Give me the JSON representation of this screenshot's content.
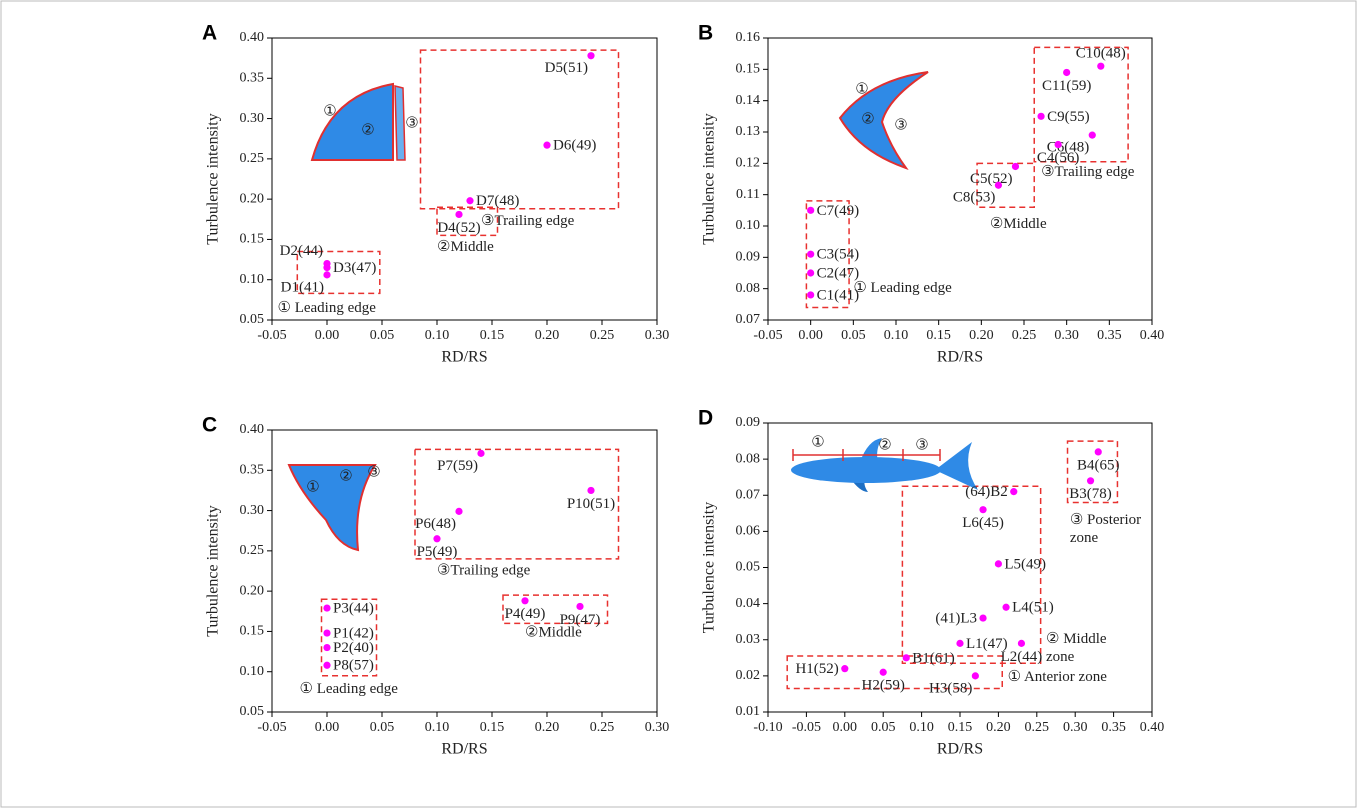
{
  "chart_data": [
    {
      "type": "scatter",
      "panel": "A",
      "xlabel": "RD/RS",
      "ylabel": "Turbulence intensity",
      "xlim": [
        -0.05,
        0.3
      ],
      "ylim": [
        0.05,
        0.4
      ],
      "xticks": [
        -0.05,
        {
          "value": 0,
          "label": "0.00"
        },
        0.05,
        {
          "value": 0.1,
          "label": "0.10"
        },
        0.15,
        {
          "value": 0.2,
          "label": "0.20"
        },
        0.25,
        {
          "value": 0.3,
          "label": "0.30"
        }
      ],
      "yticks": [
        0.05,
        {
          "value": 0.1,
          "label": "0.10"
        },
        0.15,
        {
          "value": 0.2,
          "label": "0.20"
        },
        0.25,
        {
          "value": 0.3,
          "label": "0.30"
        },
        0.35,
        {
          "value": 0.4,
          "label": "0.40"
        }
      ],
      "series": [
        {
          "color": "#ff00ff",
          "x": [
            0.24,
            0.2,
            0.13,
            0.12,
            0,
            0,
            0
          ],
          "values": [
            0.378,
            0.267,
            0.198,
            0.181,
            0.12,
            0.115,
            0.106
          ],
          "labels": [
            "D5(51)",
            "D6(49)",
            "D7(48)",
            "D4(52)",
            "D2(44)",
            "D3(47)",
            "D1(41)"
          ]
        }
      ],
      "annotations": [
        [
          "③Trailing edge"
        ],
        [
          "②Middle"
        ],
        [
          "① Leading edge"
        ]
      ],
      "diagram_labels": [
        "①",
        "②",
        "③"
      ]
    },
    {
      "type": "scatter",
      "panel": "B",
      "xlabel": "RD/RS",
      "ylabel": "Turbulence intensity",
      "xlim": [
        -0.05,
        0.4
      ],
      "ylim": [
        0.07,
        0.16
      ],
      "xticks": [
        -0.05,
        {
          "value": 0,
          "label": "0.00"
        },
        0.05,
        {
          "value": 0.1,
          "label": "0.10"
        },
        0.15,
        {
          "value": 0.2,
          "label": "0.20"
        },
        0.25,
        {
          "value": 0.3,
          "label": "0.30"
        },
        0.35,
        {
          "value": 0.4,
          "label": "0.40"
        }
      ],
      "yticks": [
        0.07,
        0.08,
        0.09,
        {
          "value": 0.1,
          "label": "0.10"
        },
        0.11,
        0.12,
        0.13,
        0.14,
        0.15,
        0.16
      ],
      "series": [
        {
          "color": "#ff00ff",
          "x": [
            0.34,
            0.3,
            0.27,
            0.33,
            0.29,
            0.24,
            0.22,
            0,
            0,
            0,
            0
          ],
          "values": [
            0.151,
            0.149,
            0.135,
            0.129,
            0.126,
            0.119,
            0.113,
            0.105,
            0.091,
            0.085,
            0.078
          ],
          "labels": [
            "C10(48)",
            "C11(59)",
            "C9(55)",
            "C6(48)",
            "C4(56)",
            "C5(52)",
            "C8(53)",
            "C7(49)",
            "C3(54)",
            "C2(47)",
            "C1(41)"
          ]
        }
      ],
      "annotations": [
        [
          "③Trailing edge"
        ],
        [
          "②Middle"
        ],
        [
          "① Leading edge"
        ]
      ],
      "diagram_labels": [
        "①",
        "②",
        "③"
      ]
    },
    {
      "type": "scatter",
      "panel": "C",
      "xlabel": "RD/RS",
      "ylabel": "Turbulence intensity",
      "xlim": [
        -0.05,
        0.3
      ],
      "ylim": [
        0.05,
        0.4
      ],
      "xticks": [
        -0.05,
        {
          "value": 0,
          "label": "0.00"
        },
        0.05,
        {
          "value": 0.1,
          "label": "0.10"
        },
        0.15,
        {
          "value": 0.2,
          "label": "0.20"
        },
        0.25,
        {
          "value": 0.3,
          "label": "0.30"
        }
      ],
      "yticks": [
        0.05,
        {
          "value": 0.1,
          "label": "0.10"
        },
        0.15,
        {
          "value": 0.2,
          "label": "0.20"
        },
        0.25,
        {
          "value": 0.3,
          "label": "0.30"
        },
        0.35,
        {
          "value": 0.4,
          "label": "0.40"
        }
      ],
      "series": [
        {
          "color": "#ff00ff",
          "x": [
            0.14,
            0.24,
            0.12,
            0.1,
            0.18,
            0.23,
            0,
            0,
            0,
            0
          ],
          "values": [
            0.371,
            0.325,
            0.299,
            0.265,
            0.188,
            0.181,
            0.179,
            0.148,
            0.13,
            0.108
          ],
          "labels": [
            "P7(59)",
            "P10(51)",
            "P6(48)",
            "P5(49)",
            "P4(49)",
            "P9(47)",
            "P3(44)",
            "P1(42)",
            "P2(40)",
            "P8(57)"
          ]
        }
      ],
      "annotations": [
        [
          "③Trailing edge"
        ],
        [
          "②Middle"
        ],
        [
          "① Leading edge"
        ]
      ],
      "diagram_labels": [
        "①",
        "②",
        "③"
      ]
    },
    {
      "type": "scatter",
      "panel": "D",
      "xlabel": "RD/RS",
      "ylabel": "Turbulence intensity",
      "xlim": [
        -0.1,
        0.4
      ],
      "ylim": [
        0.01,
        0.09
      ],
      "xticks": [
        {
          "value": -0.1,
          "label": "-0.10"
        },
        -0.05,
        {
          "value": 0,
          "label": "0.00"
        },
        0.05,
        {
          "value": 0.1,
          "label": "0.10"
        },
        0.15,
        {
          "value": 0.2,
          "label": "0.20"
        },
        0.25,
        {
          "value": 0.3,
          "label": "0.30"
        },
        0.35,
        {
          "value": 0.4,
          "label": "0.40"
        }
      ],
      "yticks": [
        0.01,
        0.02,
        0.03,
        0.04,
        0.05,
        0.06,
        0.07,
        0.08,
        0.09
      ],
      "series": [
        {
          "color": "#ff00ff",
          "x": [
            0.33,
            0.32,
            0.22,
            0.18,
            0.2,
            0.21,
            0.18,
            0.15,
            0.23,
            0.08,
            0,
            0.05,
            0.17
          ],
          "values": [
            0.082,
            0.074,
            0.071,
            0.066,
            0.051,
            0.039,
            0.036,
            0.029,
            0.029,
            0.025,
            0.022,
            0.021,
            0.02
          ],
          "labels": [
            "B4(65)",
            "B3(78)",
            "(64)B2",
            "L6(45)",
            "L5(49)",
            "L4(51)",
            "(41)L3",
            "L1(47)",
            "L2(44)",
            "B1(61)",
            "H1(52)",
            "H2(59)",
            "H3(58)"
          ]
        }
      ],
      "annotations": [
        [
          "③ Posterior",
          "zone"
        ],
        [
          "② Middle",
          "zone"
        ],
        [
          "① Anterior zone"
        ]
      ],
      "diagram_labels": [
        "①",
        "②",
        "③"
      ]
    }
  ]
}
